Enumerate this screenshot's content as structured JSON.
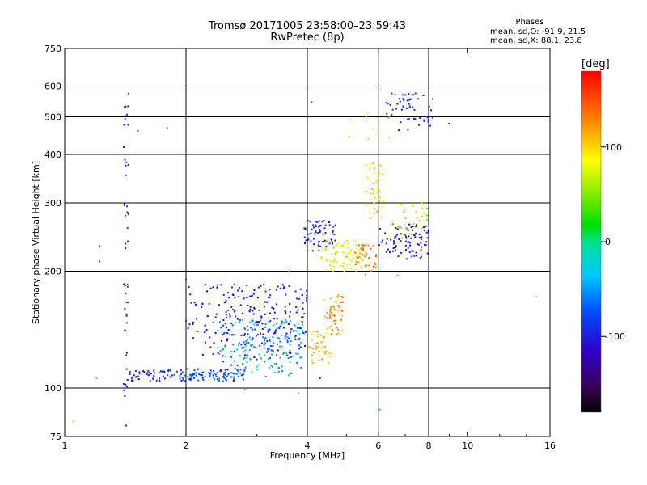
{
  "header": {
    "title": "Tromsø 20171005 23:58:00–23:59:43",
    "subtitle": "RwPretec (8p)"
  },
  "stats": {
    "heading": "Phases",
    "line_o": "mean, sd,O: -91.9, 21.5",
    "line_x": "mean, sd,X: 88.1, 23.8"
  },
  "colorbar": {
    "label": "[deg]",
    "range": [
      -180,
      180
    ],
    "ticks": [
      {
        "value": 100,
        "label": "100"
      },
      {
        "value": 0,
        "label": "0"
      },
      {
        "value": -100,
        "label": "-100"
      }
    ]
  },
  "chart_data": {
    "type": "scatter",
    "title": "Tromsø 20171005 23:58:00–23:59:43",
    "subtitle": "RwPretec (8p)",
    "xlabel": "Frequency [MHz]",
    "ylabel": "Stationary phase Virtual Height [km]",
    "x_scale": "log",
    "y_scale": "log",
    "xlim": [
      1,
      16
    ],
    "ylim": [
      75,
      750
    ],
    "grid": true,
    "x_ticks": [
      {
        "value": 1,
        "label": "1",
        "grid": false
      },
      {
        "value": 2,
        "label": "2",
        "grid": true
      },
      {
        "value": 4,
        "label": "4",
        "grid": true
      },
      {
        "value": 6,
        "label": "6",
        "grid": true
      },
      {
        "value": 8,
        "label": "8",
        "grid": true
      },
      {
        "value": 10,
        "label": "10",
        "grid": false
      },
      {
        "value": 16,
        "label": "16",
        "grid": false
      }
    ],
    "y_ticks": [
      {
        "value": 75,
        "label": "75",
        "grid": false
      },
      {
        "value": 100,
        "label": "100",
        "grid": true
      },
      {
        "value": 200,
        "label": "200",
        "grid": true
      },
      {
        "value": 300,
        "label": "300",
        "grid": true
      },
      {
        "value": 400,
        "label": "400",
        "grid": true
      },
      {
        "value": 500,
        "label": "500",
        "grid": true
      },
      {
        "value": 600,
        "label": "600",
        "grid": true
      },
      {
        "value": 750,
        "label": "750",
        "grid": false
      }
    ],
    "color_quantity": "phase [deg]",
    "clusters": [
      {
        "f": [
          1.4,
          1.44
        ],
        "h": [
          95,
          600
        ],
        "phase": -100,
        "n": 46
      },
      {
        "f": [
          1.43,
          1.8
        ],
        "h": [
          104,
          111
        ],
        "phase": -95,
        "n": 40
      },
      {
        "f": [
          1.8,
          2.8
        ],
        "h": [
          104,
          112
        ],
        "phase": -80,
        "n": 110
      },
      {
        "f": [
          2.0,
          4.0
        ],
        "h": [
          120,
          185
        ],
        "phase": -105,
        "n": 330
      },
      {
        "f": [
          2.4,
          3.9
        ],
        "h": [
          107,
          150
        ],
        "phase": -55,
        "n": 170
      },
      {
        "f": [
          3.9,
          4.7
        ],
        "h": [
          225,
          270
        ],
        "phase": -105,
        "n": 70
      },
      {
        "f": [
          4.0,
          4.6
        ],
        "h": [
          115,
          140
        ],
        "phase": 110,
        "n": 40
      },
      {
        "f": [
          4.4,
          4.9
        ],
        "h": [
          135,
          175
        ],
        "phase": 120,
        "n": 50
      },
      {
        "f": [
          4.3,
          5.5
        ],
        "h": [
          200,
          240
        ],
        "phase": 75,
        "n": 90
      },
      {
        "f": [
          5.2,
          6.0
        ],
        "h": [
          195,
          235
        ],
        "phase": 130,
        "n": 35
      },
      {
        "f": [
          5.6,
          6.2
        ],
        "h": [
          270,
          380
        ],
        "phase": 95,
        "n": 40
      },
      {
        "f": [
          6.0,
          8.0
        ],
        "h": [
          215,
          265
        ],
        "phase": -110,
        "n": 90
      },
      {
        "f": [
          6.5,
          8.0
        ],
        "h": [
          240,
          300
        ],
        "phase": 60,
        "n": 35
      },
      {
        "f": [
          6.2,
          8.2
        ],
        "h": [
          460,
          575
        ],
        "phase": -95,
        "n": 55
      },
      {
        "f": [
          5.0,
          6.5
        ],
        "h": [
          420,
          520
        ],
        "phase": 80,
        "n": 10
      }
    ],
    "points": [
      {
        "f": 1.22,
        "h": 232,
        "phase": -100
      },
      {
        "f": 1.22,
        "h": 212,
        "phase": -100
      },
      {
        "f": 1.2,
        "h": 106,
        "phase": 40
      },
      {
        "f": 1.05,
        "h": 82,
        "phase": 110
      },
      {
        "f": 1.8,
        "h": 468,
        "phase": -30
      },
      {
        "f": 1.52,
        "h": 460,
        "phase": -40
      },
      {
        "f": 1.42,
        "h": 80,
        "phase": -100
      },
      {
        "f": 4.1,
        "h": 545,
        "phase": -110
      },
      {
        "f": 6.05,
        "h": 88,
        "phase": -30
      },
      {
        "f": 14.8,
        "h": 172,
        "phase": 120
      },
      {
        "f": 2.8,
        "h": 99,
        "phase": 130
      },
      {
        "f": 3.8,
        "h": 97,
        "phase": 130
      },
      {
        "f": 4.3,
        "h": 106,
        "phase": -100
      },
      {
        "f": 2.0,
        "h": 190,
        "phase": -100
      },
      {
        "f": 3.6,
        "h": 200,
        "phase": 150
      },
      {
        "f": 6.7,
        "h": 195,
        "phase": 30
      },
      {
        "f": 9.0,
        "h": 480,
        "phase": -120
      },
      {
        "f": 7.3,
        "h": 530,
        "phase": -100
      }
    ]
  }
}
